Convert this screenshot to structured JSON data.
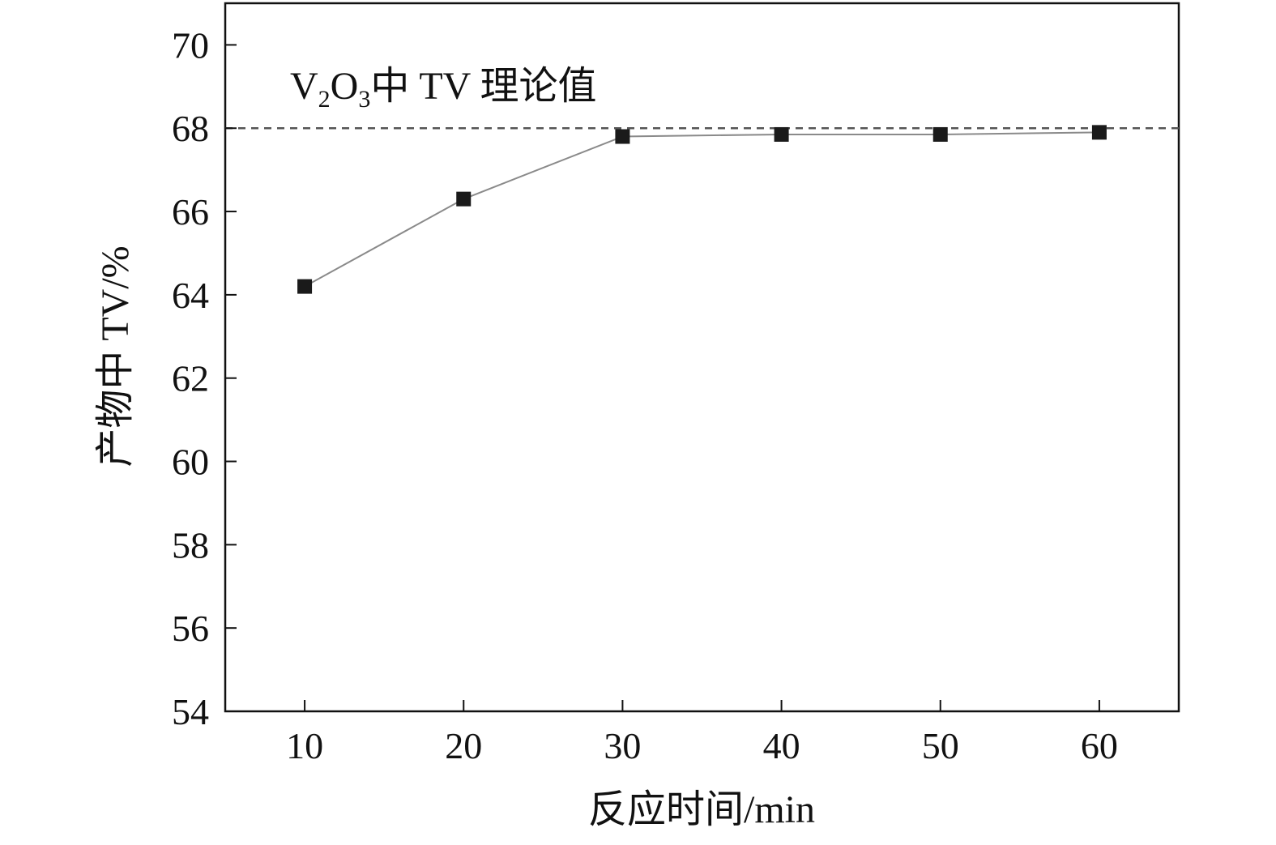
{
  "chart_data": {
    "type": "line",
    "x": [
      10,
      20,
      30,
      40,
      50,
      60
    ],
    "series": [
      {
        "values": [
          64.2,
          66.3,
          67.8,
          67.85,
          67.85,
          67.9
        ],
        "color": "#1a1a1a",
        "marker": "square"
      }
    ],
    "xlabel": "反应时间/min",
    "ylabel": "产物中 TV/%",
    "xlim": [
      5,
      65
    ],
    "ylim": [
      54,
      71
    ],
    "xticks": [
      "10",
      "20",
      "30",
      "40",
      "50",
      "60"
    ],
    "yticks": [
      "54",
      "56",
      "58",
      "60",
      "62",
      "64",
      "66",
      "68",
      "70"
    ],
    "reference_line": {
      "y": 68,
      "style": "dashed",
      "color": "#555555"
    },
    "annotation": {
      "parts": [
        "V",
        "2",
        "O",
        "3",
        "中 TV 理论值"
      ]
    },
    "grid": false,
    "line_color": "#8a8a8a",
    "axis_color": "#111111"
  }
}
